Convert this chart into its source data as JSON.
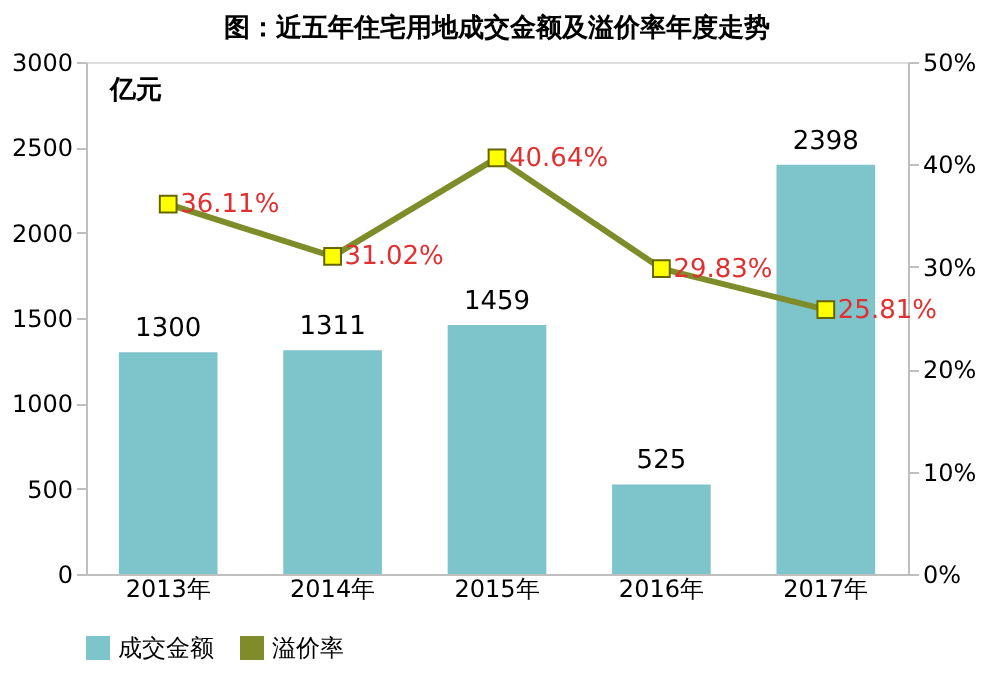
{
  "chart_data": {
    "type": "bar",
    "title": "图：近五年住宅用地成交金额及溢价率年度走势",
    "ylabel": "亿元",
    "categories": [
      "2013年",
      "2014年",
      "2015年",
      "2016年",
      "2017年"
    ],
    "series": [
      {
        "name": "成交金额",
        "color": "#7ec4cb",
        "values": [
          1300,
          1311,
          1459,
          525,
          2398
        ],
        "value_labels": [
          "1300",
          "1311",
          "1459",
          "525",
          "2398"
        ]
      },
      {
        "name": "溢价率",
        "type": "line",
        "axis": "y2",
        "color": "#7f8c2a",
        "marker": "square",
        "values": [
          36.11,
          31.02,
          40.64,
          29.83,
          25.81
        ],
        "value_labels": [
          "36.11%",
          "31.02%",
          "40.64%",
          "29.83%",
          "25.81%"
        ]
      }
    ],
    "ylim": [
      0,
      3000
    ],
    "yticks": [
      0,
      500,
      1000,
      1500,
      2000,
      2500,
      3000
    ],
    "y2lim": [
      0,
      50
    ],
    "y2ticks": [
      {
        "value": 0,
        "label": "0%"
      },
      {
        "value": 10,
        "label": "10%"
      },
      {
        "value": 20,
        "label": "20%"
      },
      {
        "value": 30,
        "label": "30%"
      },
      {
        "value": 40,
        "label": "40%"
      },
      {
        "value": 50,
        "label": "50%"
      }
    ],
    "grid": false,
    "legend": "bottom"
  }
}
